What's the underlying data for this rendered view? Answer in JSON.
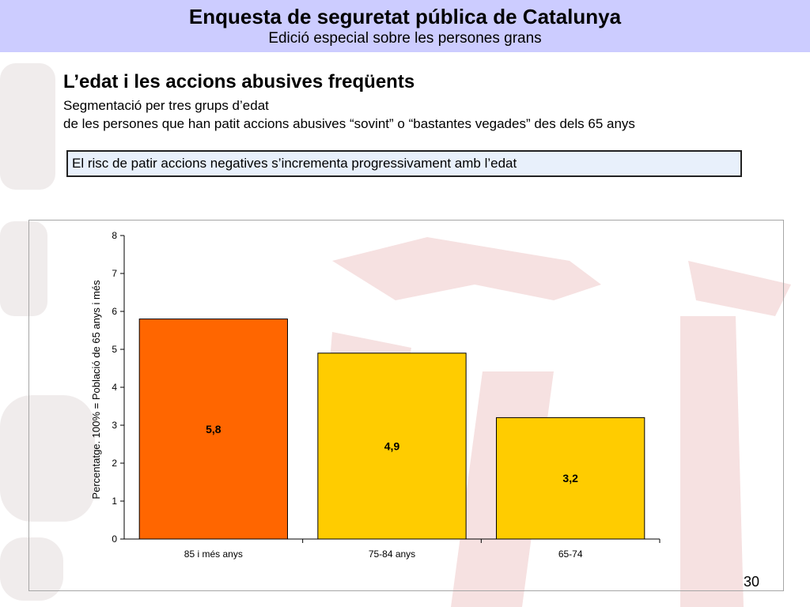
{
  "header": {
    "title": "Enquesta de seguretat pública de Catalunya",
    "subtitle": "Edició especial sobre les persones grans"
  },
  "slide": {
    "title": "L’edat i les accions abusives freqüents",
    "line1": "Segmentació per tres grups d’edat",
    "line2": "de les persones que han patit accions abusives “sovint” o “bastantes vegades” des dels 65 anys",
    "callout": "El risc de patir accions negatives s’incrementa progressivament amb l’edat",
    "page_number": "30"
  },
  "colors": {
    "header_bg": "#ccccff",
    "bar_highlight": "#ff6600",
    "bar_default": "#ffcc00",
    "watermark": "#f3dada"
  },
  "chart_data": {
    "type": "bar",
    "categories": [
      "85 i més anys",
      "75-84 anys",
      "65-74"
    ],
    "values": [
      5.8,
      4.9,
      3.2
    ],
    "data_labels": [
      "5,8",
      "4,9",
      "3,2"
    ],
    "bar_colors": [
      "#ff6600",
      "#ffcc00",
      "#ffcc00"
    ],
    "ylabel": "Percentatge. 100% = Població de 65 anys i més",
    "ylim": [
      0,
      8
    ],
    "yticks": [
      "0",
      "1",
      "2",
      "3",
      "4",
      "5",
      "6",
      "7",
      "8"
    ],
    "grid": false
  }
}
